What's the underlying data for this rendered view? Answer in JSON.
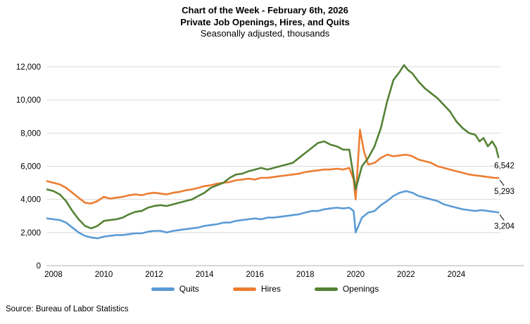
{
  "chart_data": {
    "type": "line",
    "title_line1": "Chart of the Week - February 6th, 2026",
    "title_line2": "Private Job Openings, Hires, and Quits",
    "subtitle": "Seasonally adjusted, thousands",
    "xlabel": "",
    "ylabel": "",
    "grid": "horizontal",
    "legend_position": "bottom",
    "x_axis": {
      "range": [
        2008,
        2026
      ],
      "ticks": [
        {
          "value": 2008,
          "label": "2008"
        },
        {
          "value": 2010,
          "label": "2010"
        },
        {
          "value": 2012,
          "label": "2012"
        },
        {
          "value": 2014,
          "label": "2014"
        },
        {
          "value": 2016,
          "label": "2016"
        },
        {
          "value": 2018,
          "label": "2018"
        },
        {
          "value": 2020,
          "label": "2020"
        },
        {
          "value": 2022,
          "label": "2022"
        },
        {
          "value": 2024,
          "label": "2024"
        }
      ]
    },
    "y_axis": {
      "range": [
        0,
        12000
      ],
      "ticks": [
        {
          "value": 0,
          "label": "0"
        },
        {
          "value": 2000,
          "label": "2,000"
        },
        {
          "value": 4000,
          "label": "4,000"
        },
        {
          "value": 6000,
          "label": "6,000"
        },
        {
          "value": 8000,
          "label": "8,000"
        },
        {
          "value": 10000,
          "label": "10,000"
        },
        {
          "value": 12000,
          "label": "12,000"
        }
      ]
    },
    "series": [
      {
        "name": "Quits",
        "color": "#5B9BD5",
        "end_label": "3,204",
        "end_value": 3204,
        "leader_line": true,
        "points": [
          [
            2008,
            2850
          ],
          [
            2008.25,
            2800
          ],
          [
            2008.5,
            2750
          ],
          [
            2008.75,
            2600
          ],
          [
            2009,
            2300
          ],
          [
            2009.25,
            2000
          ],
          [
            2009.5,
            1800
          ],
          [
            2009.75,
            1700
          ],
          [
            2010,
            1650
          ],
          [
            2010.25,
            1750
          ],
          [
            2010.5,
            1800
          ],
          [
            2010.75,
            1850
          ],
          [
            2011,
            1850
          ],
          [
            2011.25,
            1900
          ],
          [
            2011.5,
            1950
          ],
          [
            2011.75,
            1950
          ],
          [
            2012,
            2050
          ],
          [
            2012.25,
            2100
          ],
          [
            2012.5,
            2100
          ],
          [
            2012.75,
            2000
          ],
          [
            2013,
            2100
          ],
          [
            2013.25,
            2150
          ],
          [
            2013.5,
            2200
          ],
          [
            2013.75,
            2250
          ],
          [
            2014,
            2300
          ],
          [
            2014.25,
            2400
          ],
          [
            2014.5,
            2450
          ],
          [
            2014.75,
            2500
          ],
          [
            2015,
            2600
          ],
          [
            2015.25,
            2600
          ],
          [
            2015.5,
            2700
          ],
          [
            2015.75,
            2750
          ],
          [
            2016,
            2800
          ],
          [
            2016.25,
            2850
          ],
          [
            2016.5,
            2800
          ],
          [
            2016.75,
            2900
          ],
          [
            2017,
            2900
          ],
          [
            2017.25,
            2950
          ],
          [
            2017.5,
            3000
          ],
          [
            2017.75,
            3050
          ],
          [
            2018,
            3100
          ],
          [
            2018.25,
            3200
          ],
          [
            2018.5,
            3300
          ],
          [
            2018.75,
            3300
          ],
          [
            2019,
            3400
          ],
          [
            2019.25,
            3450
          ],
          [
            2019.5,
            3500
          ],
          [
            2019.75,
            3450
          ],
          [
            2020,
            3500
          ],
          [
            2020.17,
            3300
          ],
          [
            2020.25,
            2000
          ],
          [
            2020.5,
            2900
          ],
          [
            2020.75,
            3200
          ],
          [
            2021,
            3300
          ],
          [
            2021.25,
            3650
          ],
          [
            2021.5,
            3900
          ],
          [
            2021.75,
            4200
          ],
          [
            2022,
            4400
          ],
          [
            2022.25,
            4500
          ],
          [
            2022.5,
            4400
          ],
          [
            2022.75,
            4200
          ],
          [
            2023,
            4100
          ],
          [
            2023.25,
            4000
          ],
          [
            2023.5,
            3900
          ],
          [
            2023.75,
            3700
          ],
          [
            2024,
            3600
          ],
          [
            2024.25,
            3500
          ],
          [
            2024.5,
            3400
          ],
          [
            2024.75,
            3350
          ],
          [
            2025,
            3300
          ],
          [
            2025.25,
            3350
          ],
          [
            2025.5,
            3300
          ],
          [
            2025.75,
            3250
          ],
          [
            2025.92,
            3204
          ]
        ]
      },
      {
        "name": "Hires",
        "color": "#ED7D31",
        "end_label": "5,293",
        "end_value": 5293,
        "leader_line": true,
        "points": [
          [
            2008,
            5100
          ],
          [
            2008.25,
            5000
          ],
          [
            2008.5,
            4900
          ],
          [
            2008.75,
            4700
          ],
          [
            2009,
            4400
          ],
          [
            2009.25,
            4100
          ],
          [
            2009.5,
            3800
          ],
          [
            2009.75,
            3750
          ],
          [
            2010,
            3900
          ],
          [
            2010.25,
            4150
          ],
          [
            2010.5,
            4050
          ],
          [
            2010.75,
            4100
          ],
          [
            2011,
            4150
          ],
          [
            2011.25,
            4250
          ],
          [
            2011.5,
            4300
          ],
          [
            2011.75,
            4250
          ],
          [
            2012,
            4350
          ],
          [
            2012.25,
            4400
          ],
          [
            2012.5,
            4350
          ],
          [
            2012.75,
            4300
          ],
          [
            2013,
            4400
          ],
          [
            2013.25,
            4450
          ],
          [
            2013.5,
            4550
          ],
          [
            2013.75,
            4600
          ],
          [
            2014,
            4700
          ],
          [
            2014.25,
            4800
          ],
          [
            2014.5,
            4850
          ],
          [
            2014.75,
            4950
          ],
          [
            2015,
            5000
          ],
          [
            2015.25,
            5050
          ],
          [
            2015.5,
            5150
          ],
          [
            2015.75,
            5200
          ],
          [
            2016,
            5250
          ],
          [
            2016.25,
            5200
          ],
          [
            2016.5,
            5300
          ],
          [
            2016.75,
            5300
          ],
          [
            2017,
            5350
          ],
          [
            2017.25,
            5400
          ],
          [
            2017.5,
            5450
          ],
          [
            2017.75,
            5500
          ],
          [
            2018,
            5550
          ],
          [
            2018.25,
            5650
          ],
          [
            2018.5,
            5700
          ],
          [
            2018.75,
            5750
          ],
          [
            2019,
            5800
          ],
          [
            2019.25,
            5800
          ],
          [
            2019.5,
            5850
          ],
          [
            2019.75,
            5800
          ],
          [
            2020,
            5900
          ],
          [
            2020.17,
            5200
          ],
          [
            2020.25,
            4000
          ],
          [
            2020.42,
            8200
          ],
          [
            2020.58,
            6900
          ],
          [
            2020.75,
            6100
          ],
          [
            2021,
            6200
          ],
          [
            2021.25,
            6500
          ],
          [
            2021.5,
            6700
          ],
          [
            2021.75,
            6600
          ],
          [
            2022,
            6650
          ],
          [
            2022.25,
            6700
          ],
          [
            2022.5,
            6600
          ],
          [
            2022.75,
            6400
          ],
          [
            2023,
            6300
          ],
          [
            2023.25,
            6200
          ],
          [
            2023.5,
            6000
          ],
          [
            2023.75,
            5900
          ],
          [
            2024,
            5800
          ],
          [
            2024.25,
            5700
          ],
          [
            2024.5,
            5600
          ],
          [
            2024.75,
            5500
          ],
          [
            2025,
            5450
          ],
          [
            2025.25,
            5400
          ],
          [
            2025.5,
            5350
          ],
          [
            2025.75,
            5300
          ],
          [
            2025.92,
            5293
          ]
        ]
      },
      {
        "name": "Openings",
        "color": "#548235",
        "end_label": "6,542",
        "end_value": 6542,
        "leader_line": false,
        "points": [
          [
            2008,
            4600
          ],
          [
            2008.25,
            4500
          ],
          [
            2008.5,
            4300
          ],
          [
            2008.75,
            3900
          ],
          [
            2009,
            3300
          ],
          [
            2009.25,
            2800
          ],
          [
            2009.5,
            2400
          ],
          [
            2009.75,
            2250
          ],
          [
            2010,
            2400
          ],
          [
            2010.25,
            2700
          ],
          [
            2010.5,
            2750
          ],
          [
            2010.75,
            2800
          ],
          [
            2011,
            2900
          ],
          [
            2011.25,
            3100
          ],
          [
            2011.5,
            3250
          ],
          [
            2011.75,
            3300
          ],
          [
            2012,
            3500
          ],
          [
            2012.25,
            3600
          ],
          [
            2012.5,
            3650
          ],
          [
            2012.75,
            3600
          ],
          [
            2013,
            3700
          ],
          [
            2013.25,
            3800
          ],
          [
            2013.5,
            3900
          ],
          [
            2013.75,
            4000
          ],
          [
            2014,
            4200
          ],
          [
            2014.25,
            4400
          ],
          [
            2014.5,
            4700
          ],
          [
            2014.75,
            4850
          ],
          [
            2015,
            5000
          ],
          [
            2015.25,
            5300
          ],
          [
            2015.5,
            5500
          ],
          [
            2015.75,
            5550
          ],
          [
            2016,
            5700
          ],
          [
            2016.25,
            5800
          ],
          [
            2016.5,
            5900
          ],
          [
            2016.75,
            5800
          ],
          [
            2017,
            5900
          ],
          [
            2017.25,
            6000
          ],
          [
            2017.5,
            6100
          ],
          [
            2017.75,
            6200
          ],
          [
            2018,
            6500
          ],
          [
            2018.25,
            6800
          ],
          [
            2018.5,
            7100
          ],
          [
            2018.75,
            7400
          ],
          [
            2019,
            7500
          ],
          [
            2019.25,
            7300
          ],
          [
            2019.5,
            7200
          ],
          [
            2019.75,
            7000
          ],
          [
            2020,
            7000
          ],
          [
            2020.25,
            4600
          ],
          [
            2020.5,
            6000
          ],
          [
            2020.75,
            6500
          ],
          [
            2021,
            7200
          ],
          [
            2021.25,
            8300
          ],
          [
            2021.5,
            9900
          ],
          [
            2021.75,
            11200
          ],
          [
            2022,
            11700
          ],
          [
            2022.17,
            12100
          ],
          [
            2022.33,
            11800
          ],
          [
            2022.5,
            11600
          ],
          [
            2022.75,
            11100
          ],
          [
            2023,
            10700
          ],
          [
            2023.25,
            10400
          ],
          [
            2023.5,
            10100
          ],
          [
            2023.75,
            9700
          ],
          [
            2024,
            9300
          ],
          [
            2024.25,
            8700
          ],
          [
            2024.5,
            8300
          ],
          [
            2024.75,
            8000
          ],
          [
            2025,
            7900
          ],
          [
            2025.17,
            7500
          ],
          [
            2025.33,
            7700
          ],
          [
            2025.5,
            7200
          ],
          [
            2025.67,
            7500
          ],
          [
            2025.83,
            7100
          ],
          [
            2025.92,
            6542
          ]
        ]
      }
    ]
  },
  "legend": {
    "items": [
      {
        "label": "Quits",
        "color": "#5B9BD5"
      },
      {
        "label": "Hires",
        "color": "#ED7D31"
      },
      {
        "label": "Openings",
        "color": "#548235"
      }
    ]
  },
  "source_note": "Source: Bureau of Labor Statistics",
  "colors": {
    "quits": "#5B9BD5",
    "hires": "#ED7D31",
    "openings": "#548235",
    "gridline": "#D9D9D9",
    "axis_line": "#BFBFBF",
    "text": "#000000"
  }
}
